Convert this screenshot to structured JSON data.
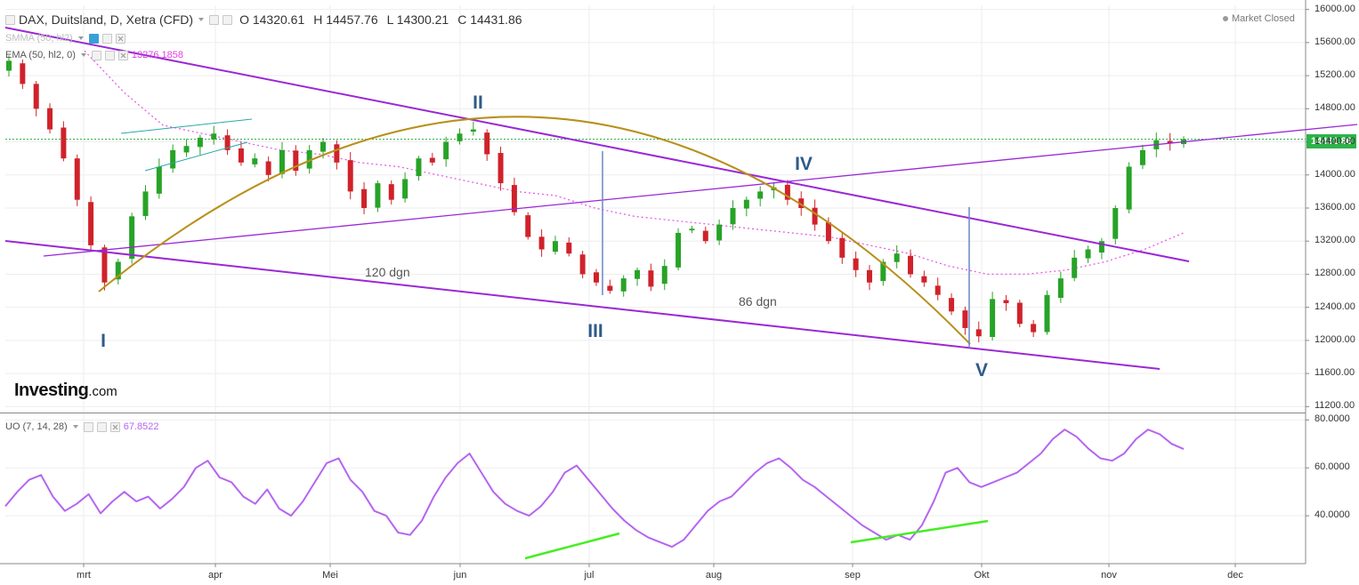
{
  "header": {
    "title": "DAX, Duitsland, D, Xetra (CFD)",
    "open": "O 14320.61",
    "high": "H 14457.76",
    "low": "L 14300.21",
    "close": "C 14431.86",
    "market_status": "Market Closed"
  },
  "indicators": {
    "smma_label": "SMMA (50, hl2)",
    "ema_label": "EMA (50, hl2, 0)",
    "ema_value": "13276.1858",
    "uo_label": "UO (7, 14, 28)",
    "uo_value": "67.8522"
  },
  "watermark": {
    "brand": "Investing",
    "suffix": ".com"
  },
  "price_tag": "14431.86",
  "annotations": {
    "wave_I": "I",
    "wave_II": "II",
    "wave_III": "III",
    "wave_IV": "IV",
    "wave_V": "V",
    "days_120": "120 dgn",
    "days_86": "86 dgn"
  },
  "colors": {
    "up_candle": "#27a327",
    "down_candle": "#d0222a",
    "channel": "#9a28d6",
    "arc": "#b8901c",
    "ema": "#e85ce8",
    "uo_line": "#b565f0",
    "divergence": "#44ee22",
    "flag": "#2aa8a8",
    "vertical_marker": "#6b86c4",
    "last_price": "#1fae3a"
  },
  "chart_data": [
    {
      "type": "candlestick",
      "title": "DAX, Duitsland, D, Xetra (CFD)",
      "x_ticks": [
        "mrt",
        "apr",
        "Mei",
        "jun",
        "jul",
        "aug",
        "sep",
        "Okt",
        "nov",
        "dec"
      ],
      "y_ticks": [
        "16000.00",
        "15600.00",
        "15200.00",
        "14800.00",
        "14400.00",
        "14000.00",
        "13600.00",
        "13200.00",
        "12800.00",
        "12400.00",
        "12000.00",
        "11600.00",
        "11200.00"
      ],
      "ylim": [
        11150,
        16050
      ],
      "last_price": 14431.86,
      "close_series": [
        15380,
        15100,
        14800,
        14550,
        14200,
        13700,
        13150,
        12700,
        12950,
        13500,
        13800,
        14100,
        14300,
        14350,
        14450,
        14500,
        14300,
        14150,
        14200,
        14000,
        14300,
        14050,
        14300,
        14400,
        14150,
        13800,
        13600,
        13900,
        13700,
        13950,
        14200,
        14150,
        14400,
        14500,
        14550,
        14250,
        13900,
        13550,
        13250,
        13100,
        13200,
        13050,
        12800,
        12700,
        12600,
        12750,
        12850,
        12650,
        12900,
        13300,
        13350,
        13200,
        13400,
        13600,
        13700,
        13800,
        13850,
        13700,
        13600,
        13400,
        13200,
        13000,
        12850,
        12700,
        12950,
        13050,
        12800,
        12700,
        12550,
        12350,
        12150,
        12050,
        12500,
        12450,
        12200,
        12100,
        12550,
        12750,
        13000,
        13100,
        13200,
        13600,
        14100,
        14300,
        14420,
        14380,
        14431.86
      ],
      "ema_50": [
        15500,
        15000,
        14600,
        14500,
        14400,
        14300,
        14250,
        14150,
        14100,
        14000,
        13900,
        13800,
        13750,
        13600,
        13500,
        13450,
        13400,
        13350,
        13300,
        13250,
        13150,
        13050,
        12900,
        12800,
        12800,
        12850,
        12950,
        13100,
        13300
      ],
      "smma_50": []
    },
    {
      "type": "line",
      "name": "UO (7, 14, 28)",
      "y_ticks": [
        "80.0000",
        "60.0000",
        "40.0000"
      ],
      "ylim": [
        20,
        82
      ],
      "last_value": 67.8522,
      "values": [
        44,
        50,
        55,
        57,
        48,
        42,
        45,
        49,
        41,
        46,
        50,
        46,
        48,
        43,
        47,
        52,
        60,
        63,
        56,
        54,
        48,
        45,
        51,
        43,
        40,
        46,
        54,
        62,
        64,
        55,
        50,
        42,
        40,
        33,
        32,
        38,
        48,
        56,
        62,
        66,
        58,
        50,
        45,
        42,
        40,
        44,
        50,
        58,
        61,
        55,
        49,
        43,
        38,
        34,
        31,
        29,
        27,
        30,
        36,
        42,
        46,
        48,
        53,
        58,
        62,
        64,
        60,
        55,
        52,
        48,
        44,
        40,
        36,
        33,
        30,
        32,
        30,
        36,
        46,
        58,
        60,
        54,
        52,
        54,
        56,
        58,
        62,
        66,
        72,
        76,
        73,
        68,
        64,
        63,
        66,
        72,
        76,
        74,
        70,
        67.8522
      ]
    }
  ]
}
